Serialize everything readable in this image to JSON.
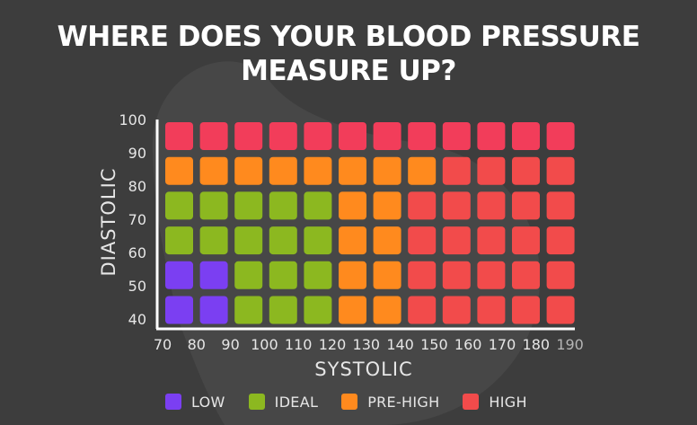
{
  "title": {
    "line1": "WHERE DOES YOUR BLOOD PRESSURE",
    "line2": "MEASURE UP?"
  },
  "colors": {
    "background": "#3d3d3d",
    "low": "#7b3ff2",
    "ideal": "#8cb820",
    "pre_high": "#ff8a1e",
    "high": "#f24b4b",
    "high_top": "#f23d5a",
    "text": "#e6e6e6"
  },
  "legend": [
    {
      "key": "low",
      "label": "LOW"
    },
    {
      "key": "ideal",
      "label": "IDEAL"
    },
    {
      "key": "pre_high",
      "label": "PRE-HIGH"
    },
    {
      "key": "high",
      "label": "HIGH"
    }
  ],
  "chart_data": {
    "type": "heatmap",
    "xlabel": "SYSTOLIC",
    "ylabel": "DIASTOLIC",
    "x_ticks": [
      70,
      80,
      90,
      100,
      110,
      120,
      130,
      140,
      150,
      160,
      170,
      180,
      190
    ],
    "y_ticks": [
      40,
      50,
      60,
      70,
      80,
      90,
      100
    ],
    "xlim": [
      70,
      190
    ],
    "ylim": [
      40,
      100
    ],
    "categories_x": [
      "70-80",
      "80-90",
      "90-100",
      "100-110",
      "110-120",
      "120-130",
      "130-140",
      "140-150",
      "150-160",
      "160-170",
      "170-180",
      "180-190"
    ],
    "rows": [
      {
        "diastolic": "90-100",
        "cells": [
          "high",
          "high",
          "high",
          "high",
          "high",
          "high",
          "high",
          "high",
          "high",
          "high",
          "high",
          "high"
        ]
      },
      {
        "diastolic": "80-90",
        "cells": [
          "pre_high",
          "pre_high",
          "pre_high",
          "pre_high",
          "pre_high",
          "pre_high",
          "pre_high",
          "pre_high",
          "high",
          "high",
          "high",
          "high"
        ]
      },
      {
        "diastolic": "70-80",
        "cells": [
          "ideal",
          "ideal",
          "ideal",
          "ideal",
          "ideal",
          "pre_high",
          "pre_high",
          "high",
          "high",
          "high",
          "high",
          "high"
        ]
      },
      {
        "diastolic": "60-70",
        "cells": [
          "ideal",
          "ideal",
          "ideal",
          "ideal",
          "ideal",
          "pre_high",
          "pre_high",
          "high",
          "high",
          "high",
          "high",
          "high"
        ]
      },
      {
        "diastolic": "50-60",
        "cells": [
          "low",
          "low",
          "ideal",
          "ideal",
          "ideal",
          "pre_high",
          "pre_high",
          "high",
          "high",
          "high",
          "high",
          "high"
        ]
      },
      {
        "diastolic": "40-50",
        "cells": [
          "low",
          "low",
          "ideal",
          "ideal",
          "ideal",
          "pre_high",
          "pre_high",
          "high",
          "high",
          "high",
          "high",
          "high"
        ]
      }
    ]
  }
}
